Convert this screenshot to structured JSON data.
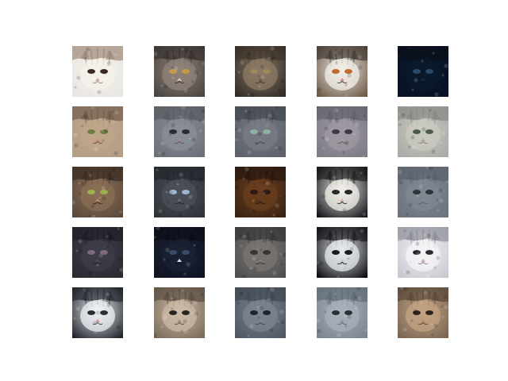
{
  "figure": {
    "rows": 5,
    "cols": 5,
    "tiles": [
      {
        "subject": "cat-face",
        "palette": {
          "bg": "#e8e6e2",
          "fur": "#f4f1ea",
          "patch": "#8a6f5b",
          "eye": "#3a2a1f",
          "nose": "#d2a49a"
        }
      },
      {
        "subject": "cat-face",
        "palette": {
          "bg": "#4a4440",
          "fur": "#8f8379",
          "patch": "#2d2826",
          "eye": "#c89a48",
          "nose": "#d8c2b0"
        }
      },
      {
        "subject": "cat-face",
        "palette": {
          "bg": "#2e2a25",
          "fur": "#8b7a66",
          "patch": "#3b3128",
          "eye": "#9c8a5a",
          "nose": "#6c5b4b"
        }
      },
      {
        "subject": "cat-face",
        "palette": {
          "bg": "#6d5a47",
          "fur": "#f2efe8",
          "patch": "#2b2723",
          "eye": "#c26a2d",
          "nose": "#d99a84"
        }
      },
      {
        "subject": "cat-face",
        "palette": {
          "bg": "#071124",
          "fur": "#0b1a2c",
          "patch": "#0b0d15",
          "eye": "#2a4a6d",
          "nose": "#1a2a3f"
        }
      },
      {
        "subject": "cat-face",
        "palette": {
          "bg": "#b39e86",
          "fur": "#bfa58a",
          "patch": "#5d4a3d",
          "eye": "#6e7f46",
          "nose": "#c58b79"
        }
      },
      {
        "subject": "cat-face",
        "palette": {
          "bg": "#6b7078",
          "fur": "#8a8f97",
          "patch": "#4f5359",
          "eye": "#2b2d31",
          "nose": "#a38c86"
        }
      },
      {
        "subject": "cat-face",
        "palette": {
          "bg": "#5c6068",
          "fur": "#787b84",
          "patch": "#3b3e45",
          "eye": "#8eb1a2",
          "nose": "#8a7f7c"
        }
      },
      {
        "subject": "cat-face",
        "palette": {
          "bg": "#7d7b84",
          "fur": "#9d98a1",
          "patch": "#5b5860",
          "eye": "#3b3a40",
          "nose": "#b19b93"
        }
      },
      {
        "subject": "cat-face",
        "palette": {
          "bg": "#a8aaa5",
          "fur": "#c9c9c1",
          "patch": "#7c7d79",
          "eye": "#4d5a4e",
          "nose": "#b8a7a0"
        }
      },
      {
        "subject": "cat-face",
        "palette": {
          "bg": "#5b4a3c",
          "fur": "#8a6e55",
          "patch": "#2c2118",
          "eye": "#9db14d",
          "nose": "#c48a7a"
        }
      },
      {
        "subject": "cat-face",
        "palette": {
          "bg": "#2f3238",
          "fur": "#4b4f58",
          "patch": "#1e2126",
          "eye": "#9fb6d1",
          "nose": "#6f6a6c"
        }
      },
      {
        "subject": "cat-face",
        "palette": {
          "bg": "#3a2415",
          "fur": "#6a3d1e",
          "patch": "#1f120b",
          "eye": "#2b1a12",
          "nose": "#5a3a2a"
        }
      },
      {
        "subject": "cat-face",
        "palette": {
          "bg": "#121418",
          "fur": "#f2efe8",
          "patch": "#0e0f12",
          "eye": "#2a2a2a",
          "nose": "#e0b0a6"
        }
      },
      {
        "subject": "cat-face",
        "palette": {
          "bg": "#6c737d",
          "fur": "#7f8791",
          "patch": "#555b64",
          "eye": "#2e3238",
          "nose": "#8f8a8c"
        }
      },
      {
        "subject": "cat-face",
        "palette": {
          "bg": "#2a2a33",
          "fur": "#3d3d48",
          "patch": "#1b1b22",
          "eye": "#7b6a7f",
          "nose": "#4e4a56"
        }
      },
      {
        "subject": "cat-face",
        "palette": {
          "bg": "#0f1422",
          "fur": "#1b2233",
          "patch": "#090c14",
          "eye": "#3b4a6a",
          "nose": "#d8e2ef"
        }
      },
      {
        "subject": "cat-face",
        "palette": {
          "bg": "#4f4f52",
          "fur": "#7a7470",
          "patch": "#2e2d30",
          "eye": "#3a3430",
          "nose": "#8a7f7a"
        }
      },
      {
        "subject": "cat-face",
        "palette": {
          "bg": "#0f1015",
          "fur": "#e6e9ef",
          "patch": "#0b0c10",
          "eye": "#1b1c20",
          "nose": "#c7cbd2"
        }
      },
      {
        "subject": "cat-face",
        "palette": {
          "bg": "#c7c8cf",
          "fur": "#f4f4f7",
          "patch": "#7a7c86",
          "eye": "#2a2b2f",
          "nose": "#d6a7b2"
        }
      },
      {
        "subject": "cat-face",
        "palette": {
          "bg": "#20242c",
          "fur": "#eef0f4",
          "patch": "#161a20",
          "eye": "#2a2d33",
          "nose": "#d08e88"
        }
      },
      {
        "subject": "cat-face",
        "palette": {
          "bg": "#7a6a59",
          "fur": "#cbbba6",
          "patch": "#4a3f35",
          "eye": "#2a241f",
          "nose": "#b08f7f"
        }
      },
      {
        "subject": "cat-face",
        "palette": {
          "bg": "#4e5663",
          "fur": "#7c8492",
          "patch": "#3a414c",
          "eye": "#1f242c",
          "nose": "#87838a"
        }
      },
      {
        "subject": "cat-face",
        "palette": {
          "bg": "#7b8590",
          "fur": "#a7b0ba",
          "patch": "#566069",
          "eye": "#2b2f35",
          "nose": "#9c949b"
        }
      },
      {
        "subject": "cat-face",
        "palette": {
          "bg": "#7a6653",
          "fur": "#c2a383",
          "patch": "#4b3b2f",
          "eye": "#2b241f",
          "nose": "#c08a74"
        }
      }
    ]
  }
}
